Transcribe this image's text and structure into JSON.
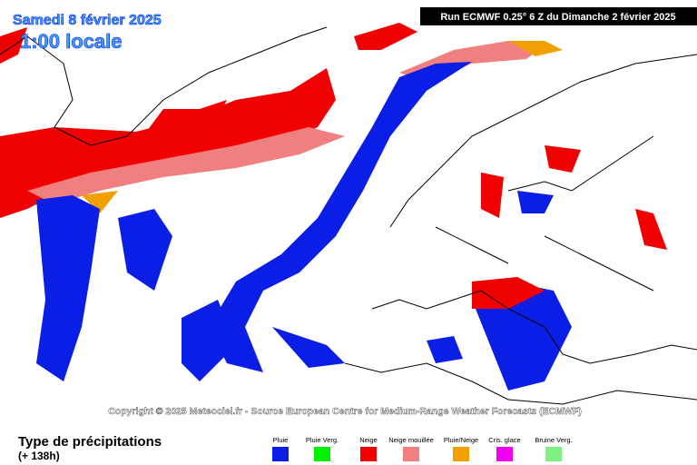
{
  "header": {
    "date": "Samedi 8 février 2025",
    "time": "1:00 locale",
    "run": "Run ECMWF 0.25° 6 Z du Dimanche 2 février 2025"
  },
  "copyright": "Copyright © 2025 Meteociel.fr - Source European Centre for Medium-Range Weather Forecasts (ECMWF)",
  "legend": {
    "title": "Type de précipitations",
    "lead": "(+ 138h)",
    "items": [
      {
        "label": "Pluie",
        "color": "#0a1ee6"
      },
      {
        "label": "Pluie Verg.",
        "color": "#00f000"
      },
      {
        "label": "Neige",
        "color": "#f00000"
      },
      {
        "label": "Neige mouillée",
        "color": "#f08080"
      },
      {
        "label": "Pluie/Neige",
        "color": "#f0a000"
      },
      {
        "label": "Cris. glace",
        "color": "#f000f0"
      },
      {
        "label": "Bruine Verg.",
        "color": "#80f080"
      }
    ]
  }
}
